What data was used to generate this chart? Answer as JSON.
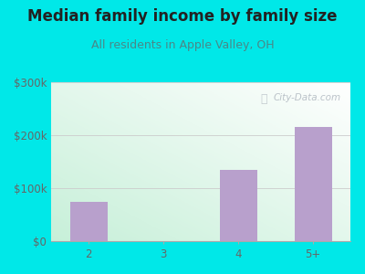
{
  "title": "Median family income by family size",
  "subtitle": "All residents in Apple Valley, OH",
  "categories": [
    "2",
    "3",
    "4",
    "5+"
  ],
  "values": [
    75000,
    0,
    135000,
    215000
  ],
  "bar_color": "#b8a0cc",
  "title_color": "#222222",
  "subtitle_color": "#4a8888",
  "tick_label_color": "#666666",
  "background_outer": "#00e8e8",
  "ylim": [
    0,
    300000
  ],
  "yticks": [
    0,
    100000,
    200000,
    300000
  ],
  "ytick_labels": [
    "$0",
    "$100k",
    "$200k",
    "$300k"
  ],
  "watermark": "City-Data.com",
  "title_fontsize": 12,
  "subtitle_fontsize": 9,
  "tick_fontsize": 8.5
}
